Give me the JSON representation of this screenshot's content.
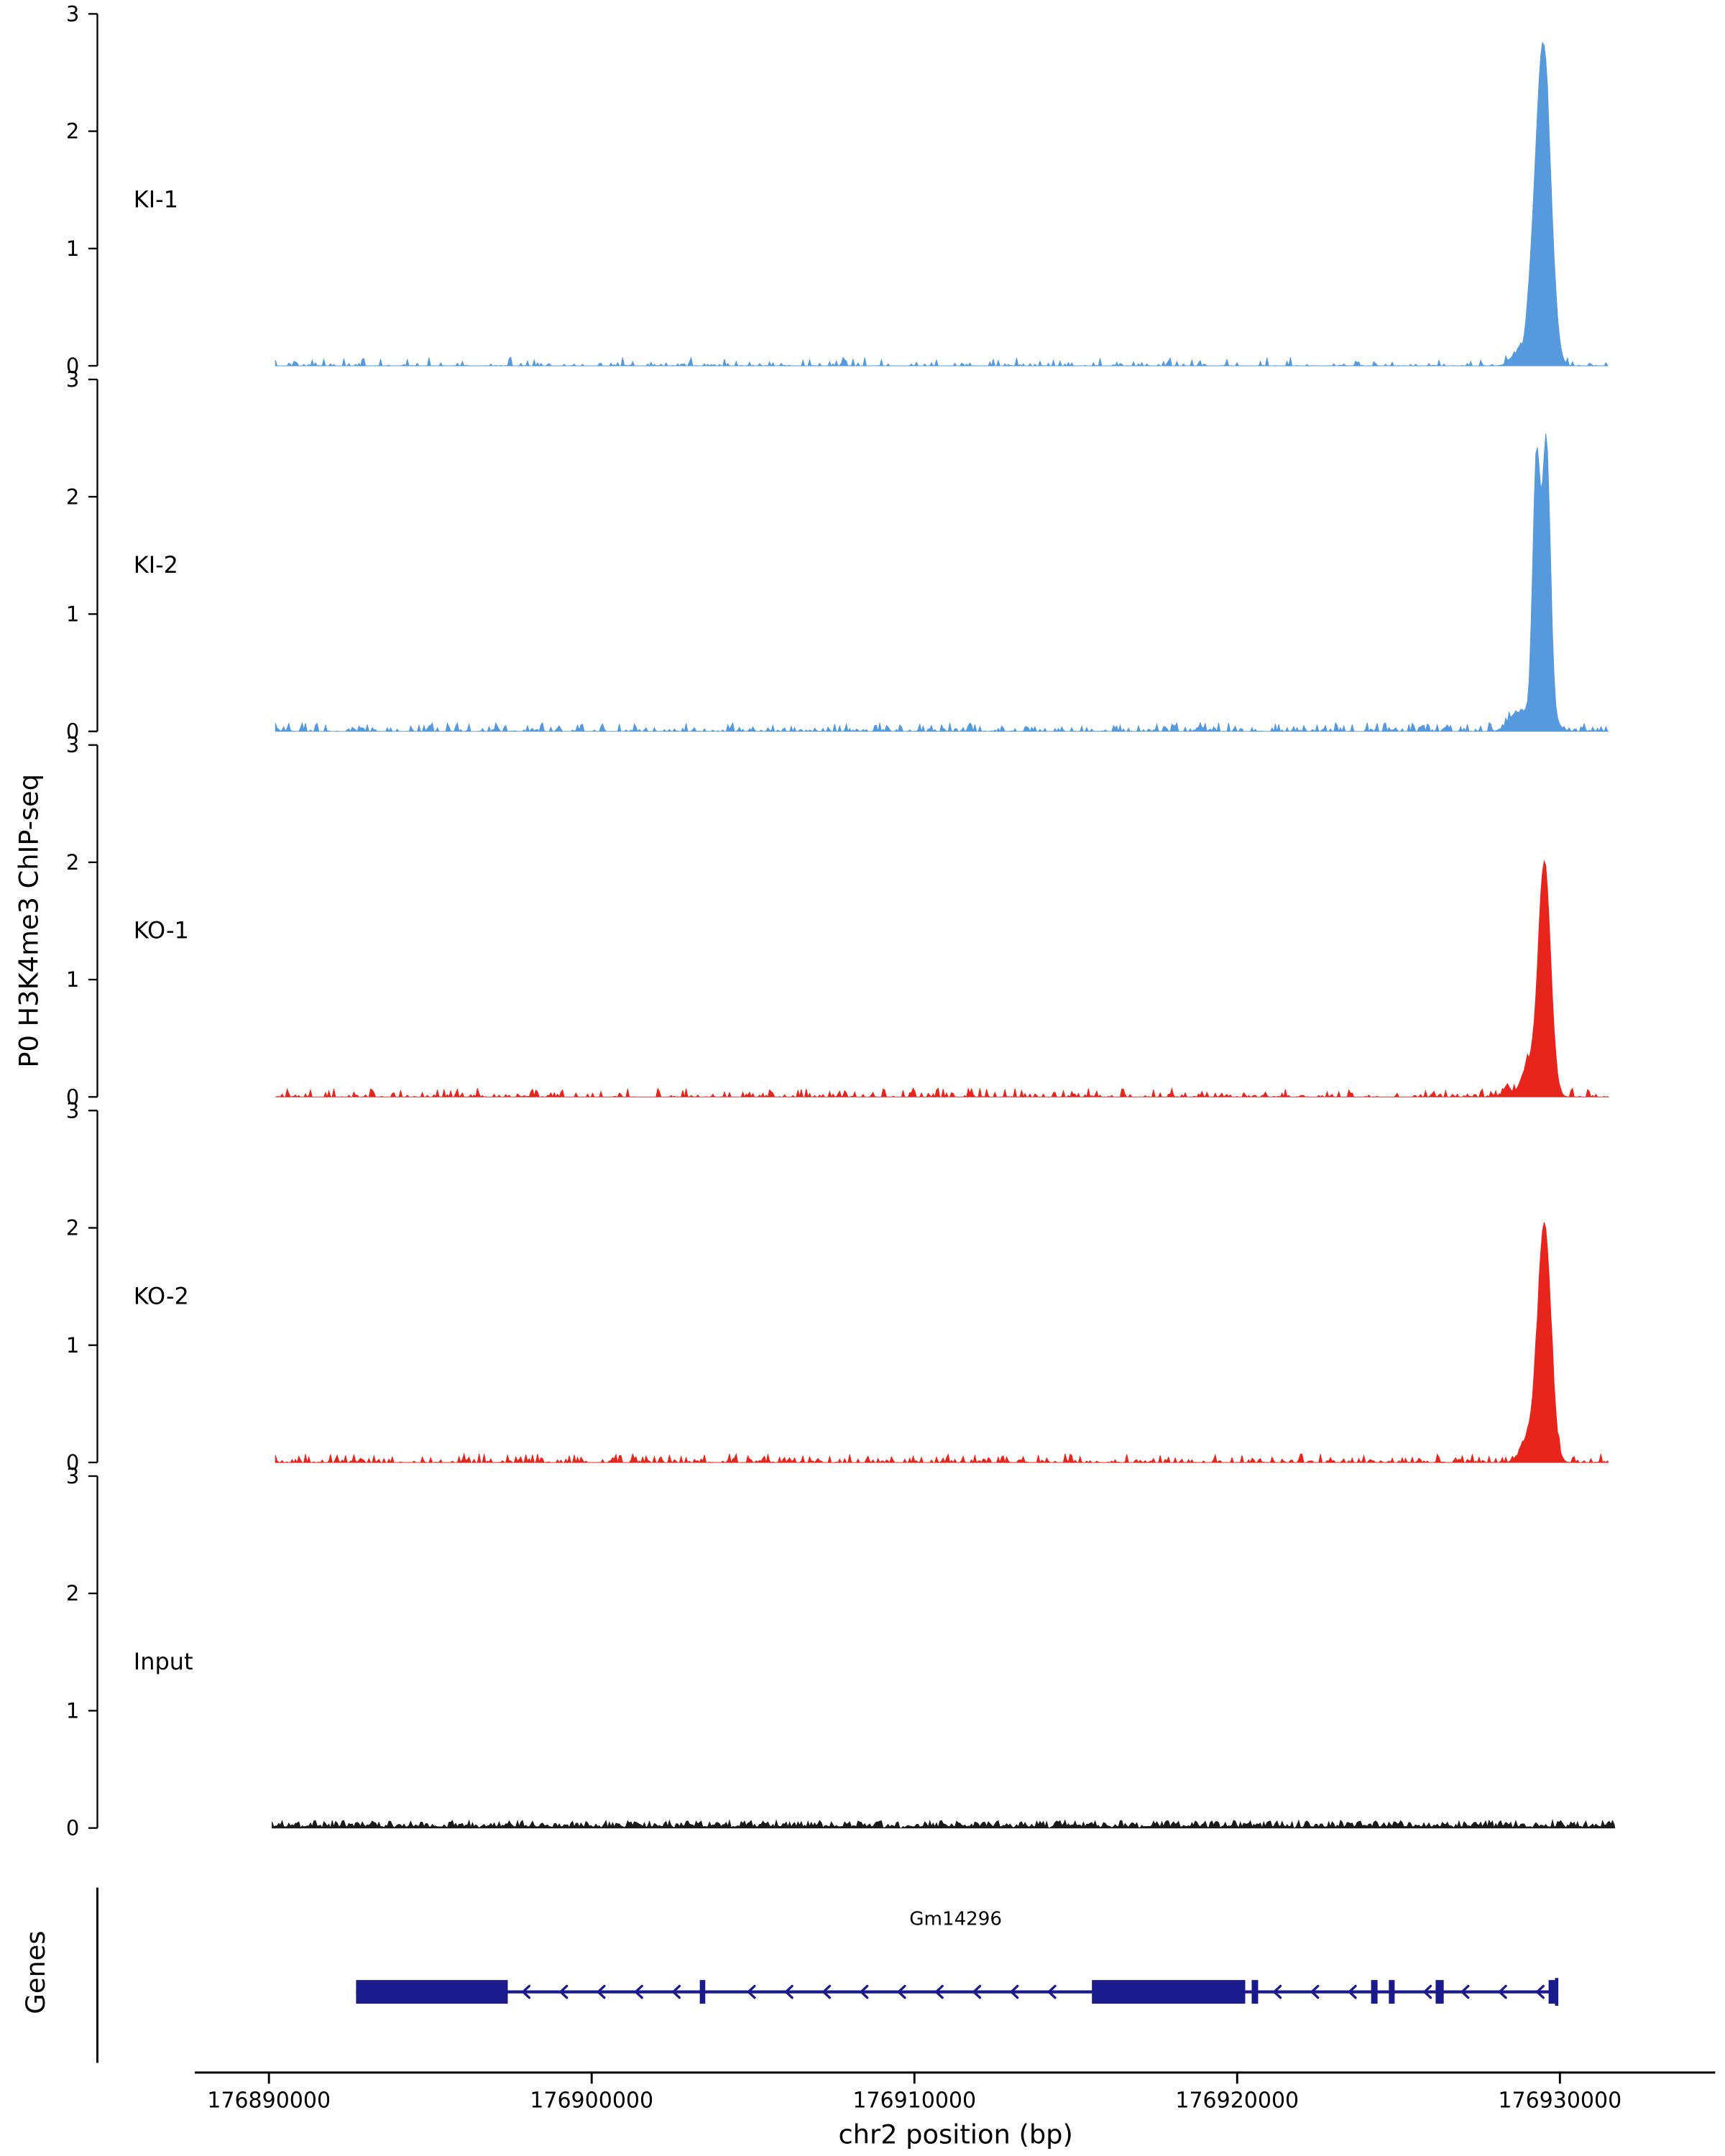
{
  "figure": {
    "ylabel": "P0 H3K4me3 ChIP-seq",
    "xlabel": "chr2 position (bp)",
    "genes_panel_label": "Genes"
  },
  "chart_data": {
    "type": "area",
    "title": "",
    "xlabel": "chr2 position (bp)",
    "ylabel": "P0 H3K4me3 ChIP-seq",
    "xlim": [
      176884900,
      176934900
    ],
    "ylim": [
      0,
      3
    ],
    "x_ticks": [
      176890000,
      176900000,
      176910000,
      176920000,
      176930000
    ],
    "y_ticks": [
      0,
      1,
      2,
      3
    ],
    "grid": false,
    "legend": "none",
    "tracks": [
      {
        "name": "KI-1",
        "color": "#569add",
        "seed": 101,
        "noise_level": 0.045,
        "noise_density": 0.22,
        "noise_range": [
          176890200,
          176931500
        ],
        "peaks": [
          {
            "center": 176929480,
            "sigma": 230,
            "height": 2.75
          },
          {
            "center": 176929100,
            "sigma": 150,
            "height": 0.3
          },
          {
            "center": 176928650,
            "sigma": 200,
            "height": 0.1
          }
        ],
        "summit": {
          "position": 176929480,
          "height": 2.85
        }
      },
      {
        "name": "KI-2",
        "color": "#569add",
        "seed": 202,
        "noise_level": 0.045,
        "noise_density": 0.4,
        "noise_range": [
          176890200,
          176931500
        ],
        "peaks": [
          {
            "center": 176929580,
            "sigma": 120,
            "height": 2.2
          },
          {
            "center": 176929270,
            "sigma": 110,
            "height": 2.05
          },
          {
            "center": 176929430,
            "sigma": 300,
            "height": 0.32
          },
          {
            "center": 176928650,
            "sigma": 250,
            "height": 0.15
          }
        ],
        "summit": {
          "position": 176929580,
          "height": 2.55
        }
      },
      {
        "name": "KO-1",
        "color": "#e8251c",
        "seed": 303,
        "noise_level": 0.045,
        "noise_density": 0.3,
        "noise_range": [
          176890200,
          176931500
        ],
        "peaks": [
          {
            "center": 176929520,
            "sigma": 190,
            "height": 2.0
          },
          {
            "center": 176929000,
            "sigma": 210,
            "height": 0.25
          },
          {
            "center": 176928350,
            "sigma": 120,
            "height": 0.08
          }
        ],
        "summit": {
          "position": 176929520,
          "height": 2.1
        }
      },
      {
        "name": "KO-2",
        "color": "#e8251c",
        "seed": 404,
        "noise_level": 0.045,
        "noise_density": 0.42,
        "noise_range": [
          176890200,
          176931500
        ],
        "peaks": [
          {
            "center": 176929520,
            "sigma": 200,
            "height": 2.02
          },
          {
            "center": 176929050,
            "sigma": 230,
            "height": 0.22
          }
        ],
        "summit": {
          "position": 176929520,
          "height": 2.1
        }
      },
      {
        "name": "Input",
        "color": "#1a1a1a",
        "seed": 505,
        "noise_level": 0.04,
        "noise_density": 0.95,
        "noise_range": [
          176890100,
          176931700
        ],
        "peaks": [],
        "summit": null
      }
    ],
    "gene": {
      "name": "Gm14296",
      "chrom": "chr2",
      "start": 176892700,
      "end": 176929900,
      "strand": "-",
      "color": "#1a1a8c",
      "exons": [
        {
          "start": 176892700,
          "end": 176897400,
          "thick": true
        },
        {
          "start": 176903350,
          "end": 176903520,
          "thick": false
        },
        {
          "start": 176915500,
          "end": 176920250,
          "thick": true
        },
        {
          "start": 176920450,
          "end": 176920650,
          "thick": false
        },
        {
          "start": 176924150,
          "end": 176924350,
          "thick": false
        },
        {
          "start": 176924700,
          "end": 176924880,
          "thick": false
        },
        {
          "start": 176926150,
          "end": 176926400,
          "thick": false
        },
        {
          "start": 176929650,
          "end": 176929900,
          "thick": false
        }
      ]
    }
  }
}
